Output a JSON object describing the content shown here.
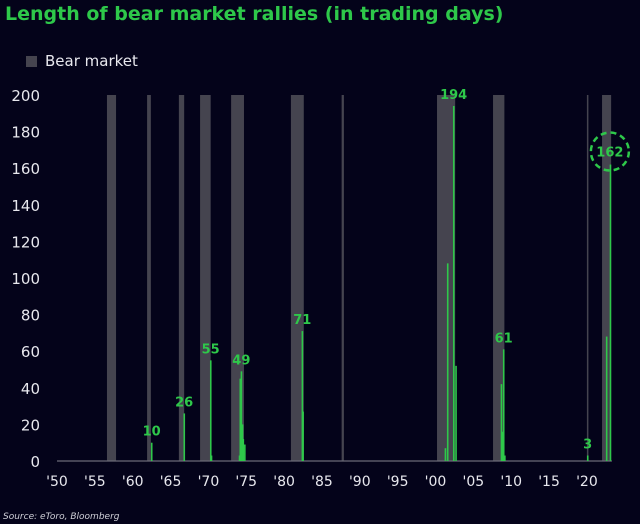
{
  "chart_data": {
    "type": "bar",
    "title": "Length of bear market rallies (in trading days)",
    "legend": {
      "label": "Bear market",
      "color": "#45444f",
      "placement": "top-left"
    },
    "source": "Source: eToro, Bloomberg",
    "xlim": [
      1950,
      2023.3
    ],
    "ylim": [
      0,
      200
    ],
    "y_ticks": [
      0,
      20,
      40,
      60,
      80,
      100,
      120,
      140,
      160,
      180,
      200
    ],
    "x_ticks": [
      {
        "year": 1950,
        "label": "'50"
      },
      {
        "year": 1955,
        "label": "'55"
      },
      {
        "year": 1960,
        "label": "'60"
      },
      {
        "year": 1965,
        "label": "'65"
      },
      {
        "year": 1970,
        "label": "'70"
      },
      {
        "year": 1975,
        "label": "'75"
      },
      {
        "year": 1980,
        "label": "'80"
      },
      {
        "year": 1985,
        "label": "'85"
      },
      {
        "year": 1990,
        "label": "'90"
      },
      {
        "year": 1995,
        "label": "'95"
      },
      {
        "year": 2000,
        "label": "'00"
      },
      {
        "year": 2005,
        "label": "'05"
      },
      {
        "year": 2010,
        "label": "'10"
      },
      {
        "year": 2015,
        "label": "'15"
      },
      {
        "year": 2020,
        "label": "'20"
      }
    ],
    "grid": false,
    "bar_color": "#2ec84a",
    "bear_markets": [
      [
        1956.6,
        1957.8
      ],
      [
        1961.9,
        1962.4
      ],
      [
        1966.1,
        1966.8
      ],
      [
        1968.9,
        1970.3
      ],
      [
        1973.0,
        1974.7
      ],
      [
        1980.9,
        1982.6
      ],
      [
        1987.6,
        1987.9
      ],
      [
        2000.2,
        2002.6
      ],
      [
        2007.6,
        2009.1
      ],
      [
        2020.0,
        2020.2
      ],
      [
        2022.0,
        2023.2
      ]
    ],
    "bars": [
      {
        "x": 1962.5,
        "value": 10,
        "label": "10"
      },
      {
        "x": 1966.8,
        "value": 26,
        "label": "26"
      },
      {
        "x": 1970.3,
        "value": 55,
        "label": "55"
      },
      {
        "x": 1970.4,
        "value": 3
      },
      {
        "x": 1974.1,
        "value": 3
      },
      {
        "x": 1974.2,
        "value": 45
      },
      {
        "x": 1974.35,
        "value": 49,
        "label": "49"
      },
      {
        "x": 1974.5,
        "value": 20
      },
      {
        "x": 1974.6,
        "value": 12
      },
      {
        "x": 1974.8,
        "value": 9
      },
      {
        "x": 1982.4,
        "value": 71,
        "label": "71"
      },
      {
        "x": 1982.5,
        "value": 27
      },
      {
        "x": 2001.3,
        "value": 7
      },
      {
        "x": 2001.6,
        "value": 108
      },
      {
        "x": 2002.4,
        "value": 194,
        "label": "194"
      },
      {
        "x": 2002.7,
        "value": 52
      },
      {
        "x": 2008.7,
        "value": 42
      },
      {
        "x": 2008.85,
        "value": 16
      },
      {
        "x": 2009.0,
        "value": 61,
        "label": "61"
      },
      {
        "x": 2009.15,
        "value": 3
      },
      {
        "x": 2020.1,
        "value": 3,
        "label": "3"
      },
      {
        "x": 2022.6,
        "value": 68
      },
      {
        "x": 2023.1,
        "value": 162,
        "label": "162",
        "highlight": true
      }
    ]
  }
}
